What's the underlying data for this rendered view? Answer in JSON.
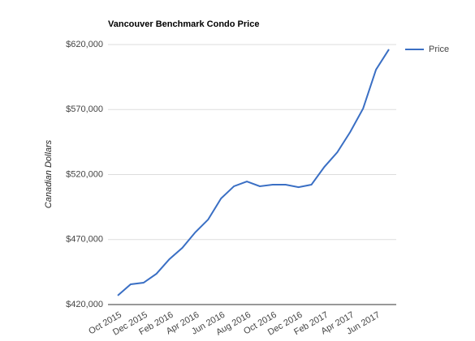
{
  "chart_data": {
    "type": "line",
    "title": "Vancouver Benchmark Condo Price",
    "y_label": "Canadian Dollars",
    "categories": [
      "Oct 2015",
      null,
      "Dec 2015",
      null,
      "Feb 2016",
      null,
      "Apr 2016",
      null,
      "Jun 2016",
      null,
      "Aug 2016",
      null,
      "Oct 2016",
      null,
      "Dec 2016",
      null,
      "Feb 2017",
      null,
      "Apr 2017",
      null,
      "Jun 2017",
      null
    ],
    "series": [
      {
        "name": "Price",
        "color": "#3a6fc4",
        "values": [
          426900,
          435600,
          436800,
          443700,
          454900,
          463600,
          475500,
          485400,
          501600,
          511000,
          514700,
          511000,
          512200,
          512200,
          510300,
          512200,
          525900,
          537100,
          552700,
          570800,
          600700,
          616300
        ]
      }
    ],
    "ylim": [
      420000,
      620000
    ],
    "yticks": [
      {
        "value": 420000,
        "label": "$420,000"
      },
      {
        "value": 470000,
        "label": "$470,000"
      },
      {
        "value": 520000,
        "label": "$520,000"
      },
      {
        "value": 570000,
        "label": "$570,000"
      },
      {
        "value": 620000,
        "label": "$620,000"
      }
    ],
    "grid": true,
    "legend": "right"
  }
}
